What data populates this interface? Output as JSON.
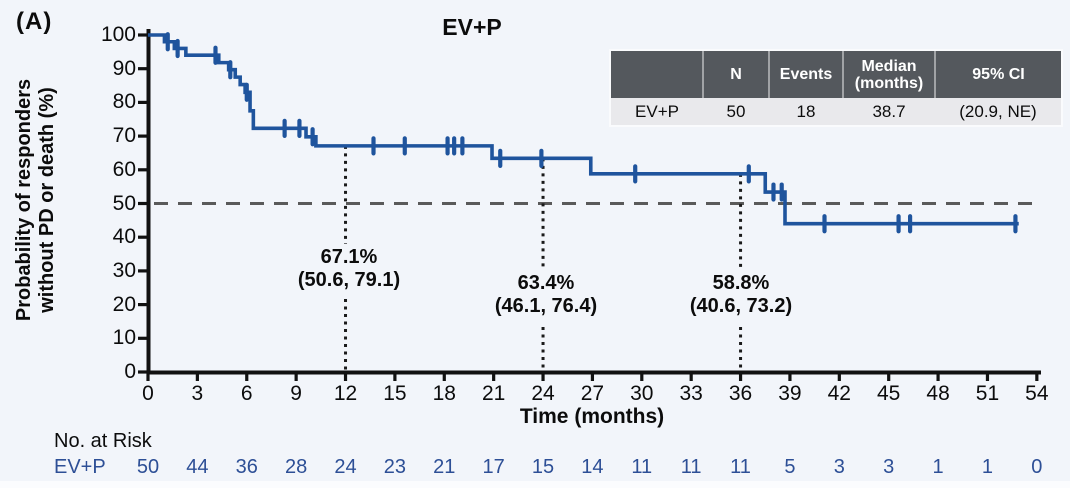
{
  "panel_label": "(A)",
  "title": "EV+P",
  "colors": {
    "background": "#f2f5fa",
    "curve": "#1f549d",
    "axis": "#111111",
    "dashed_reference": "#5a5a5a",
    "dotted_reference": "#1a1a1a",
    "risk_text": "#2d4f96",
    "table_header_bg": "#54585d",
    "table_header_text": "#ffffff",
    "table_row_bg": "#e9e9ec"
  },
  "axes": {
    "y_label_line1": "Probability of responders",
    "y_label_line2": "without PD or death (%)",
    "x_label": "Time (months)",
    "y_ticks": [
      0,
      10,
      20,
      30,
      40,
      50,
      60,
      70,
      80,
      90,
      100
    ],
    "x_ticks": [
      0,
      3,
      6,
      9,
      12,
      15,
      18,
      21,
      24,
      27,
      30,
      33,
      36,
      39,
      42,
      45,
      48,
      51,
      54
    ],
    "y_range": [
      0,
      100
    ],
    "x_range": [
      0,
      54
    ]
  },
  "summary_table": {
    "headers": {
      "name": "",
      "n": "N",
      "events": "Events",
      "median_line1": "Median",
      "median_line2": "(months)",
      "ci": "95% CI"
    },
    "row": {
      "name": "EV+P",
      "n": "50",
      "events": "18",
      "median": "38.7",
      "ci": "(20.9, NE)"
    }
  },
  "annotations": [
    {
      "line1": "67.1%",
      "line2": "(50.6, 79.1)",
      "t": 12
    },
    {
      "line1": "63.4%",
      "line2": "(46.1, 76.4)",
      "t": 24
    },
    {
      "line1": "58.8%",
      "line2": "(40.6, 73.2)",
      "t": 36
    }
  ],
  "at_risk": {
    "label": "No. at Risk",
    "row_label": "EV+P",
    "times": [
      0,
      3,
      6,
      9,
      12,
      15,
      18,
      21,
      24,
      27,
      30,
      33,
      36,
      39,
      42,
      45,
      48,
      51,
      54
    ],
    "values": [
      50,
      44,
      36,
      28,
      24,
      23,
      21,
      17,
      15,
      14,
      11,
      11,
      11,
      5,
      3,
      3,
      1,
      1,
      0
    ]
  },
  "chart_data": {
    "type": "line",
    "subtype": "kaplan-meier-step",
    "title": "EV+P",
    "xlabel": "Time (months)",
    "ylabel": "Probability of responders without PD or death (%)",
    "xlim": [
      0,
      54
    ],
    "ylim": [
      0,
      100
    ],
    "grid": false,
    "series": [
      {
        "name": "EV+P",
        "color": "#1f549d",
        "n": 50,
        "events": 18,
        "median_months": 38.7,
        "median_ci": "(20.9, NE)",
        "steps": [
          [
            0,
            100
          ],
          [
            1.0,
            98
          ],
          [
            1.6,
            96
          ],
          [
            2.3,
            94
          ],
          [
            4.3,
            91.8
          ],
          [
            4.9,
            89.7
          ],
          [
            5.3,
            87.5
          ],
          [
            5.6,
            85.3
          ],
          [
            5.9,
            83
          ],
          [
            6.2,
            77.5
          ],
          [
            6.4,
            72.3
          ],
          [
            9.6,
            69.8
          ],
          [
            10.2,
            67.1
          ],
          [
            20.9,
            63.4
          ],
          [
            26.9,
            58.8
          ],
          [
            37.5,
            53.4
          ],
          [
            38.7,
            44.0
          ]
        ],
        "end_t": 52.9,
        "censors": [
          [
            1.2,
            98
          ],
          [
            1.8,
            96
          ],
          [
            4.1,
            94
          ],
          [
            5.0,
            89.7
          ],
          [
            6.0,
            83
          ],
          [
            8.3,
            72.3
          ],
          [
            9.2,
            72.3
          ],
          [
            10.0,
            69.8
          ],
          [
            13.7,
            67.1
          ],
          [
            15.6,
            67.1
          ],
          [
            18.2,
            67.1
          ],
          [
            18.6,
            67.1
          ],
          [
            19.1,
            67.1
          ],
          [
            21.4,
            63.4
          ],
          [
            23.9,
            63.4
          ],
          [
            29.6,
            58.8
          ],
          [
            36.5,
            58.8
          ],
          [
            38.0,
            53.4
          ],
          [
            38.5,
            53.4
          ],
          [
            41.1,
            44.0
          ],
          [
            45.6,
            44.0
          ],
          [
            46.3,
            44.0
          ],
          [
            52.7,
            44.0
          ]
        ]
      }
    ],
    "reference_lines": {
      "horizontal_dashed_y": 50,
      "vertical_dotted_t": [
        12,
        24,
        36
      ]
    },
    "landmarks": [
      {
        "t": 12,
        "estimate": 67.1,
        "ci": [
          50.6,
          79.1
        ]
      },
      {
        "t": 24,
        "estimate": 63.4,
        "ci": [
          46.1,
          76.4
        ]
      },
      {
        "t": 36,
        "estimate": 58.8,
        "ci": [
          40.6,
          73.2
        ]
      }
    ]
  }
}
